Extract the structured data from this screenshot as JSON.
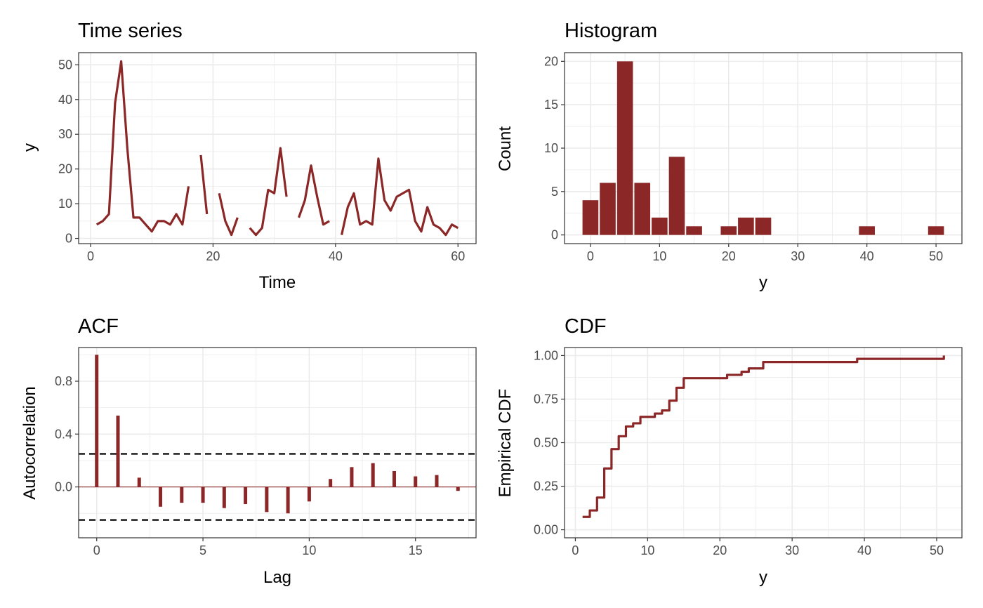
{
  "colors": {
    "series": "#8b2727",
    "grid": "#ebebeb",
    "border": "#333333",
    "tick_text": "#4d4d4d",
    "ref_line": "#000000"
  },
  "chart_data": [
    {
      "type": "line",
      "title": "Time series",
      "xlabel": "Time",
      "ylabel": "y",
      "xlim": [
        -1.95,
        62.95
      ],
      "ylim": [
        -1.5,
        53.5
      ],
      "xticks": [
        0,
        20,
        40,
        60
      ],
      "yticks": [
        0,
        10,
        20,
        30,
        40,
        50
      ],
      "grid": true,
      "x": [
        1,
        2,
        3,
        4,
        5,
        6,
        7,
        8,
        9,
        10,
        11,
        12,
        13,
        14,
        15,
        16,
        17,
        18,
        19,
        20,
        21,
        22,
        23,
        24,
        25,
        26,
        27,
        28,
        29,
        30,
        31,
        32,
        33,
        34,
        35,
        36,
        37,
        38,
        39,
        40,
        41,
        42,
        43,
        44,
        45,
        46,
        47,
        48,
        49,
        50,
        51,
        52,
        53,
        54,
        55,
        56,
        57,
        58,
        59,
        60
      ],
      "values": [
        4,
        5,
        7,
        39,
        51,
        26,
        6,
        6,
        4,
        2,
        5,
        5,
        4,
        7,
        4,
        15,
        null,
        24,
        7,
        null,
        13,
        5,
        1,
        6,
        null,
        3,
        1,
        3,
        14,
        13,
        26,
        12,
        null,
        6,
        11,
        21,
        12,
        4,
        5,
        null,
        1,
        9,
        13,
        4,
        5,
        4,
        23,
        11,
        8,
        12,
        13,
        14,
        5,
        2,
        9,
        4,
        3,
        1,
        4,
        3
      ]
    },
    {
      "type": "bar",
      "title": "Histogram",
      "xlabel": "y",
      "ylabel": "Count",
      "xlim": [
        -3.75,
        53.75
      ],
      "ylim": [
        -1,
        21
      ],
      "xticks": [
        0,
        10,
        20,
        30,
        40,
        50
      ],
      "yticks": [
        0,
        5,
        10,
        15,
        20
      ],
      "grid": true,
      "bin_width": 2.5,
      "bin_centers": [
        0,
        2.5,
        5,
        7.5,
        10,
        12.5,
        15,
        17.5,
        20,
        22.5,
        25,
        27.5,
        30,
        32.5,
        35,
        37.5,
        40,
        42.5,
        45,
        47.5,
        50
      ],
      "values": [
        4,
        6,
        20,
        6,
        2,
        9,
        1,
        0,
        1,
        2,
        2,
        0,
        0,
        0,
        0,
        0,
        1,
        0,
        0,
        0,
        1
      ]
    },
    {
      "type": "bar",
      "title": "ACF",
      "xlabel": "Lag",
      "ylabel": "Autocorrelation",
      "xlim": [
        -0.85,
        17.85
      ],
      "ylim": [
        -0.385,
        1.055
      ],
      "xticks": [
        0,
        5,
        10,
        15
      ],
      "yticks": [
        0.0,
        0.4,
        0.8
      ],
      "ytick_labels": [
        "0.0",
        "0.4",
        "0.8"
      ],
      "grid": true,
      "lags": [
        0,
        1,
        2,
        3,
        4,
        5,
        6,
        7,
        8,
        9,
        10,
        11,
        12,
        13,
        14,
        15,
        16,
        17
      ],
      "values": [
        1.0,
        0.54,
        0.07,
        -0.15,
        -0.12,
        -0.12,
        -0.16,
        -0.13,
        -0.19,
        -0.2,
        -0.11,
        0.06,
        0.15,
        0.18,
        0.12,
        0.08,
        0.09,
        -0.03
      ],
      "confidence_bounds": [
        0.25,
        -0.25
      ]
    },
    {
      "type": "line",
      "title": "CDF",
      "xlabel": "y",
      "ylabel": "Empirical CDF",
      "xlim": [
        -1.5,
        53.5
      ],
      "ylim": [
        -0.046,
        1.046
      ],
      "xticks": [
        0,
        10,
        20,
        30,
        40,
        50
      ],
      "yticks": [
        0,
        0.25,
        0.5,
        0.75,
        1
      ],
      "ytick_labels": [
        "0.00",
        "0.25",
        "0.50",
        "0.75",
        "1.00"
      ],
      "grid": true,
      "x": [
        1,
        2,
        3,
        4,
        5,
        6,
        7,
        8,
        9,
        11,
        12,
        13,
        14,
        15,
        21,
        23,
        24,
        26,
        39,
        51
      ],
      "values": [
        0.074,
        0.111,
        0.185,
        0.352,
        0.463,
        0.537,
        0.593,
        0.611,
        0.648,
        0.667,
        0.685,
        0.741,
        0.815,
        0.87,
        0.889,
        0.907,
        0.926,
        0.963,
        0.981,
        1.0
      ]
    }
  ]
}
